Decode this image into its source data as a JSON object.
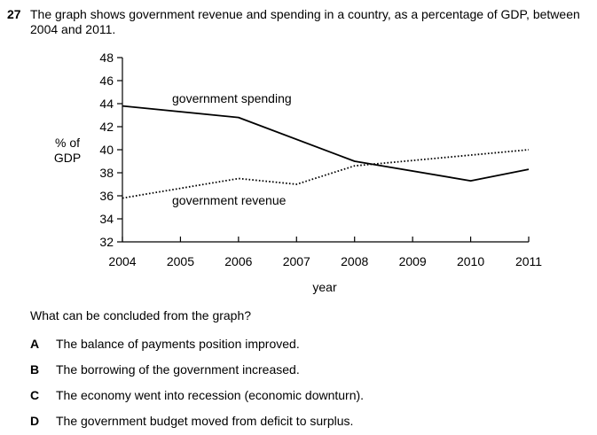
{
  "question": {
    "number": "27",
    "stem": "The graph shows government revenue and spending in a country, as a percentage of GDP, between 2004 and 2011.",
    "prompt": "What can be concluded from the graph?",
    "options": [
      {
        "letter": "A",
        "text": "The balance of payments position improved."
      },
      {
        "letter": "B",
        "text": "The borrowing of the government increased."
      },
      {
        "letter": "C",
        "text": "The economy went into recession (economic downturn)."
      },
      {
        "letter": "D",
        "text": "The government budget moved from deficit to surplus."
      }
    ]
  },
  "chart_data": {
    "type": "line",
    "xlabel": "year",
    "ylabel": "% of GDP",
    "xlim": [
      2004,
      2011
    ],
    "ylim": [
      32,
      48
    ],
    "x_ticks": [
      2004,
      2005,
      2006,
      2007,
      2008,
      2009,
      2010,
      2011
    ],
    "y_ticks": [
      32,
      34,
      36,
      38,
      40,
      42,
      44,
      46,
      48
    ],
    "grid": false,
    "series": [
      {
        "name": "government spending",
        "style": "solid",
        "color": "#000000",
        "points": [
          [
            2004,
            43.8
          ],
          [
            2006,
            42.8
          ],
          [
            2008,
            39.0
          ],
          [
            2010,
            37.3
          ],
          [
            2011,
            38.3
          ]
        ]
      },
      {
        "name": "government revenue",
        "style": "dotted",
        "color": "#000000",
        "points": [
          [
            2004,
            35.8
          ],
          [
            2006,
            37.5
          ],
          [
            2007,
            37.0
          ],
          [
            2008,
            38.6
          ],
          [
            2011,
            40.0
          ]
        ]
      }
    ]
  }
}
